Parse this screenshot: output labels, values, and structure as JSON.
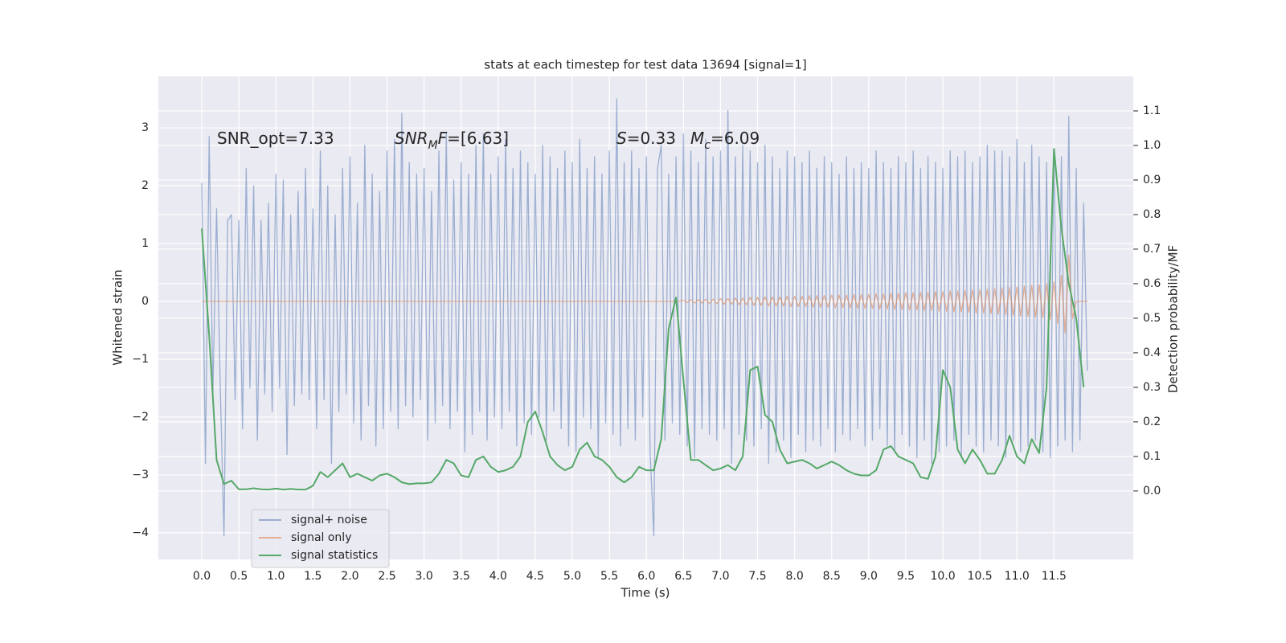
{
  "chart_data": {
    "type": "line",
    "title": "stats at each timestep for test data 13694 [signal=1]",
    "xlabel": "Time (s)",
    "ylabel": "Whitened strain",
    "y2label": "Detection probability/MF",
    "grid": true,
    "legend": "lower left",
    "xlim": [
      -0.586,
      12.57
    ],
    "ylim": [
      -4.46,
      3.89
    ],
    "y2lim": [
      -0.198,
      1.2
    ],
    "xticks": [
      {
        "value": 0,
        "label": "0.0"
      },
      0.5,
      {
        "value": 1,
        "label": "1.0"
      },
      1.5,
      {
        "value": 2,
        "label": "2.0"
      },
      2.5,
      {
        "value": 3,
        "label": "3.0"
      },
      3.5,
      {
        "value": 4,
        "label": "4.0"
      },
      4.5,
      {
        "value": 5,
        "label": "5.0"
      },
      5.5,
      {
        "value": 6,
        "label": "6.0"
      },
      6.5,
      {
        "value": 7,
        "label": "7.0"
      },
      7.5,
      {
        "value": 8,
        "label": "8.0"
      },
      8.5,
      {
        "value": 9,
        "label": "9.0"
      },
      9.5,
      {
        "value": 10,
        "label": "10.0"
      },
      10.5,
      {
        "value": 11,
        "label": "11.0"
      },
      11.5
    ],
    "yticks": [
      {
        "value": -4,
        "label": "−4"
      },
      {
        "value": -3,
        "label": "−3"
      },
      {
        "value": -2,
        "label": "−2"
      },
      {
        "value": -1,
        "label": "−1"
      },
      0,
      1,
      2,
      3
    ],
    "y2ticks": [
      {
        "value": 0,
        "label": "0.0"
      },
      0.1,
      0.2,
      0.3,
      0.4,
      0.5,
      0.6,
      0.7,
      0.8,
      0.9,
      {
        "value": 1,
        "label": "1.0"
      },
      1.1
    ],
    "annotations": [
      [
        {
          "text": "SNR_opt=7.33"
        }
      ],
      [
        {
          "text": "SNR",
          "italic": true
        },
        {
          "text": "M",
          "italic": true,
          "sub": true
        },
        {
          "text": "F",
          "italic": true
        },
        {
          "text": "=[6.63]"
        }
      ],
      [
        {
          "text": "S",
          "italic": true
        },
        {
          "text": "=0.33"
        }
      ],
      [
        {
          "text": "M",
          "italic": true
        },
        {
          "text": "c",
          "italic": true,
          "sub": true
        },
        {
          "text": "=6.09"
        }
      ]
    ],
    "x": [
      0,
      0.05,
      0.1,
      0.15,
      0.2,
      0.25,
      0.3,
      0.35,
      0.4,
      0.45,
      0.5,
      0.55,
      0.6,
      0.65,
      0.7,
      0.75,
      0.8,
      0.85,
      0.9,
      0.95,
      1,
      1.05,
      1.1,
      1.15,
      1.2,
      1.25,
      1.3,
      1.35,
      1.4,
      1.45,
      1.5,
      1.55,
      1.6,
      1.65,
      1.7,
      1.75,
      1.8,
      1.85,
      1.9,
      1.95,
      2,
      2.05,
      2.1,
      2.15,
      2.2,
      2.25,
      2.3,
      2.35,
      2.4,
      2.45,
      2.5,
      2.55,
      2.6,
      2.65,
      2.7,
      2.75,
      2.8,
      2.85,
      2.9,
      2.95,
      3,
      3.05,
      3.1,
      3.15,
      3.2,
      3.25,
      3.3,
      3.35,
      3.4,
      3.45,
      3.5,
      3.55,
      3.6,
      3.65,
      3.7,
      3.75,
      3.8,
      3.85,
      3.9,
      3.95,
      4,
      4.05,
      4.1,
      4.15,
      4.2,
      4.25,
      4.3,
      4.35,
      4.4,
      4.45,
      4.5,
      4.55,
      4.6,
      4.65,
      4.7,
      4.75,
      4.8,
      4.85,
      4.9,
      4.95,
      5,
      5.05,
      5.1,
      5.15,
      5.2,
      5.25,
      5.3,
      5.35,
      5.4,
      5.45,
      5.5,
      5.55,
      5.6,
      5.65,
      5.7,
      5.75,
      5.8,
      5.85,
      5.9,
      5.95,
      6,
      6.05,
      6.1,
      6.15,
      6.2,
      6.25,
      6.3,
      6.35,
      6.4,
      6.45,
      6.5,
      6.55,
      6.6,
      6.65,
      6.7,
      6.75,
      6.8,
      6.85,
      6.9,
      6.95,
      7,
      7.05,
      7.1,
      7.15,
      7.2,
      7.25,
      7.3,
      7.35,
      7.4,
      7.45,
      7.5,
      7.55,
      7.6,
      7.65,
      7.7,
      7.75,
      7.8,
      7.85,
      7.9,
      7.95,
      8,
      8.05,
      8.1,
      8.15,
      8.2,
      8.25,
      8.3,
      8.35,
      8.4,
      8.45,
      8.5,
      8.55,
      8.6,
      8.65,
      8.7,
      8.75,
      8.8,
      8.85,
      8.9,
      8.95,
      9,
      9.05,
      9.1,
      9.15,
      9.2,
      9.25,
      9.3,
      9.35,
      9.4,
      9.45,
      9.5,
      9.55,
      9.6,
      9.65,
      9.7,
      9.75,
      9.8,
      9.85,
      9.9,
      9.95,
      10,
      10.05,
      10.1,
      10.15,
      10.2,
      10.25,
      10.3,
      10.35,
      10.4,
      10.45,
      10.5,
      10.55,
      10.6,
      10.65,
      10.7,
      10.75,
      10.8,
      10.85,
      10.9,
      10.95,
      11,
      11.05,
      11.1,
      11.15,
      11.2,
      11.25,
      11.3,
      11.35,
      11.4,
      11.45,
      11.5,
      11.55,
      11.6,
      11.65,
      11.7,
      11.75,
      11.8,
      11.85,
      11.9,
      11.95
    ],
    "series": [
      {
        "name": "signal+ noise",
        "color": "#4c72b0",
        "alpha": 0.5,
        "values": [
          2.05,
          -2.8,
          2.85,
          -1.6,
          1.6,
          -1.5,
          -4.05,
          1.4,
          1.5,
          -1.7,
          1.4,
          -2.2,
          2.3,
          -1.5,
          2.0,
          -2.4,
          1.4,
          -1.6,
          1.7,
          -1.9,
          2.2,
          -1.5,
          2.1,
          -2.65,
          1.5,
          -1.8,
          1.9,
          -1.6,
          2.3,
          -1.7,
          1.6,
          -2.2,
          2.6,
          -1.7,
          2.0,
          -2.8,
          1.5,
          -1.9,
          2.3,
          -1.6,
          2.5,
          -2.1,
          1.7,
          -2.4,
          2.7,
          -1.8,
          2.2,
          -2.5,
          1.9,
          -2.2,
          2.6,
          -1.9,
          2.8,
          -2.2,
          3.25,
          -1.8,
          2.4,
          -2.0,
          2.2,
          -1.7,
          2.3,
          -2.4,
          1.9,
          -2.1,
          2.6,
          -1.8,
          2.9,
          -2.2,
          2.1,
          -1.9,
          2.4,
          -2.6,
          2.2,
          -2.3,
          2.7,
          -1.9,
          2.9,
          -2.4,
          2.2,
          -2.0,
          2.5,
          -2.2,
          2.8,
          -1.9,
          2.3,
          -2.5,
          2.6,
          -2.1,
          2.4,
          -2.3,
          2.2,
          -2.0,
          2.7,
          -2.4,
          2.5,
          -1.9,
          2.3,
          -2.2,
          2.6,
          -2.5,
          2.4,
          -2.6,
          2.8,
          -2.0,
          2.3,
          -2.2,
          2.5,
          -2.7,
          2.2,
          -2.1,
          2.6,
          -2.3,
          3.5,
          -2.5,
          2.4,
          -2.2,
          2.6,
          -2.4,
          2.3,
          -2.0,
          2.5,
          -2.6,
          -4.05,
          2.3,
          2.7,
          -2.4,
          2.2,
          -2.1,
          2.5,
          -2.3,
          2.9,
          -2.5,
          2.6,
          -2.7,
          2.4,
          -2.2,
          2.8,
          -2.3,
          2.5,
          -2.4,
          2.6,
          -2.2,
          3.3,
          -2.8,
          2.5,
          -2.3,
          2.7,
          -2.4,
          2.6,
          -2.5,
          2.4,
          -2.2,
          2.7,
          -2.8,
          2.5,
          -2.6,
          2.3,
          -2.4,
          2.6,
          -2.7,
          2.5,
          -2.3,
          2.4,
          -2.6,
          2.6,
          -2.4,
          2.3,
          -2.5,
          2.5,
          -2.2,
          2.4,
          -2.6,
          2.2,
          -2.3,
          2.5,
          -2.4,
          2.3,
          -2.2,
          2.4,
          -2.5,
          2.3,
          -2.4,
          2.6,
          -2.2,
          2.4,
          -2.5,
          2.3,
          -2.6,
          2.5,
          -2.3,
          2.4,
          -2.5,
          2.6,
          -2.7,
          2.3,
          -2.4,
          2.5,
          -2.8,
          2.4,
          -2.6,
          2.3,
          -2.5,
          2.6,
          -2.4,
          2.5,
          -2.7,
          2.6,
          -2.3,
          2.4,
          -2.5,
          2.5,
          -2.6,
          2.7,
          -2.4,
          2.6,
          -2.5,
          2.6,
          -2.7,
          2.5,
          -2.4,
          2.8,
          -2.6,
          2.4,
          -2.5,
          2.7,
          -2.4,
          2.5,
          -2.6,
          2.4,
          -2.7,
          2.6,
          -2.5,
          2.5,
          -2.4,
          3.2,
          -2.6,
          2.3,
          -2.4,
          1.7,
          -1.2
        ]
      },
      {
        "name": "signal only",
        "color": "#dd8452",
        "alpha": 0.6,
        "values": [
          0,
          0,
          0,
          0,
          0,
          0,
          0,
          0,
          0,
          0,
          0,
          0,
          0,
          0,
          0,
          0,
          0,
          0,
          0,
          0,
          0,
          0,
          0,
          0,
          0,
          0,
          0,
          0,
          0,
          0,
          0,
          0,
          0,
          0,
          0,
          0,
          0,
          0,
          0,
          0,
          0,
          0,
          0,
          0,
          0,
          0,
          0,
          0,
          0,
          0,
          0,
          0,
          0,
          0,
          0,
          0,
          0,
          0,
          0,
          0,
          0,
          0,
          0,
          0,
          0,
          0,
          0,
          0,
          0,
          0,
          0,
          0,
          0,
          0,
          0,
          0,
          0,
          0,
          0,
          0,
          0,
          0,
          0,
          0,
          0,
          0,
          0,
          0,
          0,
          0,
          0,
          0,
          0,
          0,
          0,
          0,
          0,
          0,
          0,
          0,
          0,
          0,
          0,
          0,
          0,
          0,
          0,
          0,
          0,
          0,
          0,
          0,
          0,
          0,
          0,
          0,
          0,
          0,
          0,
          0,
          0,
          0,
          0,
          0,
          0,
          0,
          0,
          0,
          0,
          0,
          0.02,
          -0.02,
          0.03,
          -0.03,
          0.03,
          -0.03,
          0.04,
          -0.04,
          0.04,
          -0.04,
          0.05,
          -0.05,
          0.05,
          -0.05,
          0.06,
          -0.06,
          0.06,
          -0.06,
          0.07,
          -0.07,
          0.07,
          -0.07,
          0.08,
          -0.08,
          0.08,
          -0.08,
          0.08,
          -0.08,
          0.09,
          -0.09,
          0.09,
          -0.09,
          0.09,
          -0.09,
          0.1,
          -0.1,
          0.1,
          -0.1,
          0.1,
          -0.1,
          0.11,
          -0.11,
          0.11,
          -0.11,
          0.11,
          -0.11,
          0.12,
          -0.12,
          0.12,
          -0.12,
          0.12,
          -0.12,
          0.13,
          -0.13,
          0.13,
          -0.13,
          0.14,
          -0.14,
          0.14,
          -0.14,
          0.15,
          -0.15,
          0.15,
          -0.15,
          0.16,
          -0.16,
          0.16,
          -0.16,
          0.17,
          -0.17,
          0.17,
          -0.17,
          0.18,
          -0.18,
          0.18,
          -0.18,
          0.19,
          -0.19,
          0.2,
          -0.2,
          0.2,
          -0.2,
          0.21,
          -0.21,
          0.22,
          -0.22,
          0.23,
          -0.23,
          0.24,
          -0.24,
          0.25,
          -0.25,
          0.26,
          -0.26,
          0.28,
          -0.28,
          0.29,
          -0.29,
          0.31,
          -0.31,
          0.34,
          -0.38,
          0.45,
          -0.55,
          0.8,
          -0.3,
          0,
          0,
          0,
          0
        ]
      },
      {
        "name": "signal statistics",
        "color": "#55a868",
        "axis": "y2",
        "x": [
          0,
          0.1,
          0.2,
          0.3,
          0.4,
          0.5,
          0.6,
          0.7,
          0.8,
          0.9,
          1,
          1.1,
          1.2,
          1.3,
          1.4,
          1.5,
          1.6,
          1.7,
          1.8,
          1.9,
          2,
          2.1,
          2.2,
          2.3,
          2.4,
          2.5,
          2.6,
          2.7,
          2.8,
          2.9,
          3,
          3.1,
          3.2,
          3.3,
          3.4,
          3.5,
          3.6,
          3.7,
          3.8,
          3.9,
          4,
          4.1,
          4.2,
          4.3,
          4.4,
          4.5,
          4.6,
          4.7,
          4.8,
          4.9,
          5,
          5.1,
          5.2,
          5.3,
          5.4,
          5.5,
          5.6,
          5.7,
          5.8,
          5.9,
          6,
          6.1,
          6.2,
          6.3,
          6.4,
          6.5,
          6.6,
          6.7,
          6.8,
          6.9,
          7,
          7.1,
          7.2,
          7.3,
          7.4,
          7.5,
          7.6,
          7.7,
          7.8,
          7.9,
          8,
          8.1,
          8.2,
          8.3,
          8.4,
          8.5,
          8.6,
          8.7,
          8.8,
          8.9,
          9,
          9.1,
          9.2,
          9.3,
          9.4,
          9.5,
          9.6,
          9.7,
          9.8,
          9.9,
          10,
          10.1,
          10.2,
          10.3,
          10.4,
          10.5,
          10.6,
          10.7,
          10.8,
          10.9,
          11,
          11.1,
          11.2,
          11.3,
          11.4,
          11.5,
          11.6,
          11.7,
          11.8,
          11.9
        ],
        "values": [
          0.76,
          0.45,
          0.09,
          0.02,
          0.03,
          0.005,
          0.005,
          0.008,
          0.005,
          0.004,
          0.007,
          0.004,
          0.006,
          0.004,
          0.004,
          0.015,
          0.055,
          0.04,
          0.06,
          0.08,
          0.04,
          0.05,
          0.04,
          0.03,
          0.045,
          0.05,
          0.04,
          0.025,
          0.02,
          0.022,
          0.022,
          0.025,
          0.05,
          0.09,
          0.08,
          0.045,
          0.04,
          0.09,
          0.1,
          0.07,
          0.055,
          0.06,
          0.07,
          0.1,
          0.2,
          0.23,
          0.17,
          0.1,
          0.075,
          0.06,
          0.07,
          0.12,
          0.14,
          0.1,
          0.09,
          0.07,
          0.04,
          0.025,
          0.04,
          0.07,
          0.06,
          0.06,
          0.15,
          0.47,
          0.56,
          0.32,
          0.09,
          0.09,
          0.075,
          0.06,
          0.065,
          0.075,
          0.06,
          0.1,
          0.35,
          0.36,
          0.22,
          0.2,
          0.12,
          0.08,
          0.085,
          0.09,
          0.08,
          0.065,
          0.075,
          0.085,
          0.075,
          0.06,
          0.05,
          0.045,
          0.045,
          0.06,
          0.12,
          0.13,
          0.1,
          0.09,
          0.08,
          0.04,
          0.035,
          0.1,
          0.35,
          0.3,
          0.12,
          0.08,
          0.12,
          0.09,
          0.05,
          0.05,
          0.09,
          0.16,
          0.1,
          0.08,
          0.15,
          0.11,
          0.3,
          0.99,
          0.76,
          0.6,
          0.5,
          0.3
        ]
      }
    ]
  }
}
